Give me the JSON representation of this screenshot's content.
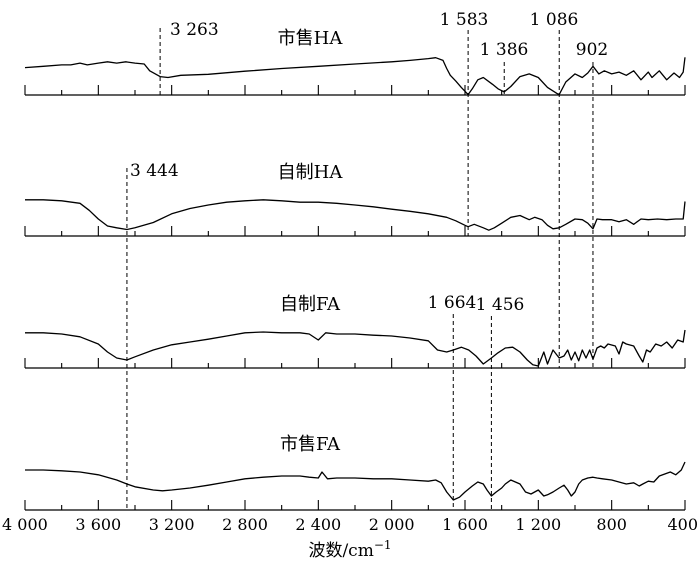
{
  "chart_data": {
    "type": "line",
    "xlabel": "波数/cm",
    "xlabel_sup": "−1",
    "xlim": [
      4000,
      400
    ],
    "x_reversed": true,
    "x_ticks": [
      {
        "value": 4000,
        "label": "4 000"
      },
      {
        "value": 3600,
        "label": "3 600"
      },
      {
        "value": 3200,
        "label": "3 200"
      },
      {
        "value": 2800,
        "label": "2 800"
      },
      {
        "value": 2400,
        "label": "2 400"
      },
      {
        "value": 2000,
        "label": "2 000"
      },
      {
        "value": 1600,
        "label": "1 600"
      },
      {
        "value": 1200,
        "label": "1 200"
      },
      {
        "value": 800,
        "label": "800"
      },
      {
        "value": 400,
        "label": "400"
      }
    ],
    "series": [
      {
        "name": "市售HA",
        "points": [
          [
            4000,
            0.28
          ],
          [
            3900,
            0.25
          ],
          [
            3800,
            0.22
          ],
          [
            3750,
            0.22
          ],
          [
            3700,
            0.18
          ],
          [
            3660,
            0.22
          ],
          [
            3600,
            0.18
          ],
          [
            3550,
            0.15
          ],
          [
            3500,
            0.18
          ],
          [
            3450,
            0.15
          ],
          [
            3400,
            0.18
          ],
          [
            3350,
            0.2
          ],
          [
            3320,
            0.35
          ],
          [
            3263,
            0.48
          ],
          [
            3220,
            0.5
          ],
          [
            3150,
            0.45
          ],
          [
            3000,
            0.43
          ],
          [
            2800,
            0.36
          ],
          [
            2600,
            0.3
          ],
          [
            2400,
            0.25
          ],
          [
            2200,
            0.2
          ],
          [
            2000,
            0.15
          ],
          [
            1900,
            0.12
          ],
          [
            1800,
            0.08
          ],
          [
            1760,
            0.06
          ],
          [
            1720,
            0.12
          ],
          [
            1700,
            0.3
          ],
          [
            1680,
            0.45
          ],
          [
            1650,
            0.58
          ],
          [
            1620,
            0.72
          ],
          [
            1583,
            0.88
          ],
          [
            1560,
            0.75
          ],
          [
            1530,
            0.55
          ],
          [
            1500,
            0.5
          ],
          [
            1450,
            0.65
          ],
          [
            1420,
            0.75
          ],
          [
            1386,
            0.82
          ],
          [
            1350,
            0.7
          ],
          [
            1300,
            0.48
          ],
          [
            1250,
            0.42
          ],
          [
            1200,
            0.5
          ],
          [
            1150,
            0.72
          ],
          [
            1100,
            0.85
          ],
          [
            1086,
            0.88
          ],
          [
            1050,
            0.6
          ],
          [
            1000,
            0.42
          ],
          [
            960,
            0.5
          ],
          [
            930,
            0.4
          ],
          [
            902,
            0.25
          ],
          [
            870,
            0.42
          ],
          [
            840,
            0.35
          ],
          [
            800,
            0.42
          ],
          [
            760,
            0.38
          ],
          [
            720,
            0.45
          ],
          [
            680,
            0.35
          ],
          [
            640,
            0.55
          ],
          [
            600,
            0.38
          ],
          [
            580,
            0.5
          ],
          [
            540,
            0.35
          ],
          [
            500,
            0.55
          ],
          [
            460,
            0.4
          ],
          [
            430,
            0.5
          ],
          [
            410,
            0.38
          ],
          [
            400,
            0.05
          ]
        ]
      },
      {
        "name": "自制HA",
        "points": [
          [
            4000,
            0.05
          ],
          [
            3900,
            0.05
          ],
          [
            3800,
            0.08
          ],
          [
            3700,
            0.15
          ],
          [
            3650,
            0.35
          ],
          [
            3600,
            0.6
          ],
          [
            3550,
            0.8
          ],
          [
            3500,
            0.85
          ],
          [
            3444,
            0.9
          ],
          [
            3400,
            0.85
          ],
          [
            3300,
            0.7
          ],
          [
            3200,
            0.45
          ],
          [
            3100,
            0.3
          ],
          [
            3000,
            0.2
          ],
          [
            2900,
            0.12
          ],
          [
            2800,
            0.08
          ],
          [
            2700,
            0.05
          ],
          [
            2600,
            0.08
          ],
          [
            2500,
            0.12
          ],
          [
            2400,
            0.12
          ],
          [
            2300,
            0.15
          ],
          [
            2200,
            0.2
          ],
          [
            2100,
            0.25
          ],
          [
            2000,
            0.32
          ],
          [
            1900,
            0.38
          ],
          [
            1800,
            0.45
          ],
          [
            1700,
            0.55
          ],
          [
            1650,
            0.65
          ],
          [
            1600,
            0.78
          ],
          [
            1583,
            0.82
          ],
          [
            1550,
            0.75
          ],
          [
            1500,
            0.85
          ],
          [
            1470,
            0.92
          ],
          [
            1440,
            0.85
          ],
          [
            1400,
            0.72
          ],
          [
            1350,
            0.55
          ],
          [
            1300,
            0.5
          ],
          [
            1250,
            0.62
          ],
          [
            1220,
            0.55
          ],
          [
            1180,
            0.62
          ],
          [
            1150,
            0.78
          ],
          [
            1120,
            0.88
          ],
          [
            1086,
            0.85
          ],
          [
            1050,
            0.75
          ],
          [
            1000,
            0.6
          ],
          [
            960,
            0.62
          ],
          [
            930,
            0.72
          ],
          [
            902,
            0.88
          ],
          [
            880,
            0.6
          ],
          [
            850,
            0.62
          ],
          [
            800,
            0.62
          ],
          [
            760,
            0.68
          ],
          [
            720,
            0.62
          ],
          [
            680,
            0.75
          ],
          [
            640,
            0.6
          ],
          [
            600,
            0.62
          ],
          [
            550,
            0.6
          ],
          [
            500,
            0.62
          ],
          [
            450,
            0.6
          ],
          [
            410,
            0.6
          ],
          [
            400,
            0.1
          ]
        ]
      },
      {
        "name": "自制FA",
        "points": [
          [
            4000,
            0.12
          ],
          [
            3900,
            0.12
          ],
          [
            3800,
            0.15
          ],
          [
            3700,
            0.22
          ],
          [
            3600,
            0.4
          ],
          [
            3550,
            0.6
          ],
          [
            3500,
            0.75
          ],
          [
            3444,
            0.8
          ],
          [
            3400,
            0.72
          ],
          [
            3300,
            0.55
          ],
          [
            3200,
            0.42
          ],
          [
            3100,
            0.35
          ],
          [
            3000,
            0.28
          ],
          [
            2900,
            0.2
          ],
          [
            2800,
            0.12
          ],
          [
            2700,
            0.1
          ],
          [
            2600,
            0.12
          ],
          [
            2500,
            0.12
          ],
          [
            2450,
            0.15
          ],
          [
            2400,
            0.3
          ],
          [
            2360,
            0.12
          ],
          [
            2300,
            0.15
          ],
          [
            2200,
            0.15
          ],
          [
            2100,
            0.18
          ],
          [
            2000,
            0.2
          ],
          [
            1900,
            0.25
          ],
          [
            1800,
            0.32
          ],
          [
            1750,
            0.55
          ],
          [
            1700,
            0.6
          ],
          [
            1664,
            0.55
          ],
          [
            1620,
            0.48
          ],
          [
            1580,
            0.55
          ],
          [
            1540,
            0.7
          ],
          [
            1500,
            0.9
          ],
          [
            1456,
            0.75
          ],
          [
            1420,
            0.62
          ],
          [
            1380,
            0.5
          ],
          [
            1340,
            0.48
          ],
          [
            1300,
            0.6
          ],
          [
            1260,
            0.8
          ],
          [
            1230,
            0.92
          ],
          [
            1200,
            0.95
          ],
          [
            1170,
            0.6
          ],
          [
            1150,
            0.9
          ],
          [
            1120,
            0.55
          ],
          [
            1086,
            0.75
          ],
          [
            1060,
            0.7
          ],
          [
            1040,
            0.55
          ],
          [
            1020,
            0.8
          ],
          [
            1000,
            0.6
          ],
          [
            980,
            0.82
          ],
          [
            960,
            0.55
          ],
          [
            940,
            0.75
          ],
          [
            920,
            0.55
          ],
          [
            902,
            0.78
          ],
          [
            880,
            0.5
          ],
          [
            860,
            0.45
          ],
          [
            840,
            0.5
          ],
          [
            820,
            0.4
          ],
          [
            780,
            0.45
          ],
          [
            760,
            0.65
          ],
          [
            740,
            0.35
          ],
          [
            720,
            0.4
          ],
          [
            680,
            0.45
          ],
          [
            650,
            0.7
          ],
          [
            630,
            0.85
          ],
          [
            610,
            0.55
          ],
          [
            590,
            0.6
          ],
          [
            560,
            0.4
          ],
          [
            530,
            0.45
          ],
          [
            500,
            0.35
          ],
          [
            470,
            0.5
          ],
          [
            440,
            0.3
          ],
          [
            410,
            0.35
          ],
          [
            400,
            0.05
          ]
        ]
      },
      {
        "name": "市售FA",
        "points": [
          [
            4000,
            0.0
          ],
          [
            3900,
            0.0
          ],
          [
            3800,
            0.02
          ],
          [
            3700,
            0.05
          ],
          [
            3600,
            0.12
          ],
          [
            3500,
            0.25
          ],
          [
            3444,
            0.35
          ],
          [
            3400,
            0.42
          ],
          [
            3300,
            0.5
          ],
          [
            3250,
            0.52
          ],
          [
            3200,
            0.5
          ],
          [
            3100,
            0.45
          ],
          [
            3000,
            0.38
          ],
          [
            2900,
            0.3
          ],
          [
            2800,
            0.22
          ],
          [
            2700,
            0.18
          ],
          [
            2600,
            0.15
          ],
          [
            2500,
            0.15
          ],
          [
            2450,
            0.18
          ],
          [
            2400,
            0.2
          ],
          [
            2380,
            0.05
          ],
          [
            2350,
            0.22
          ],
          [
            2300,
            0.2
          ],
          [
            2200,
            0.2
          ],
          [
            2100,
            0.22
          ],
          [
            2000,
            0.22
          ],
          [
            1900,
            0.25
          ],
          [
            1800,
            0.28
          ],
          [
            1760,
            0.25
          ],
          [
            1730,
            0.32
          ],
          [
            1700,
            0.55
          ],
          [
            1664,
            0.75
          ],
          [
            1630,
            0.68
          ],
          [
            1600,
            0.55
          ],
          [
            1560,
            0.4
          ],
          [
            1530,
            0.3
          ],
          [
            1500,
            0.35
          ],
          [
            1480,
            0.5
          ],
          [
            1456,
            0.65
          ],
          [
            1430,
            0.55
          ],
          [
            1400,
            0.45
          ],
          [
            1380,
            0.35
          ],
          [
            1350,
            0.25
          ],
          [
            1300,
            0.35
          ],
          [
            1270,
            0.55
          ],
          [
            1240,
            0.6
          ],
          [
            1200,
            0.5
          ],
          [
            1170,
            0.65
          ],
          [
            1150,
            0.62
          ],
          [
            1120,
            0.55
          ],
          [
            1086,
            0.45
          ],
          [
            1060,
            0.38
          ],
          [
            1040,
            0.5
          ],
          [
            1020,
            0.65
          ],
          [
            1000,
            0.55
          ],
          [
            980,
            0.35
          ],
          [
            960,
            0.25
          ],
          [
            930,
            0.2
          ],
          [
            902,
            0.18
          ],
          [
            880,
            0.2
          ],
          [
            850,
            0.22
          ],
          [
            800,
            0.25
          ],
          [
            760,
            0.3
          ],
          [
            720,
            0.35
          ],
          [
            680,
            0.32
          ],
          [
            650,
            0.4
          ],
          [
            630,
            0.35
          ],
          [
            600,
            0.28
          ],
          [
            570,
            0.3
          ],
          [
            540,
            0.15
          ],
          [
            510,
            0.1
          ],
          [
            480,
            0.05
          ],
          [
            450,
            0.12
          ],
          [
            420,
            0.0
          ],
          [
            400,
            -0.2
          ]
        ]
      }
    ],
    "annotations": [
      {
        "series": 0,
        "label": "3 263",
        "x": 3263
      },
      {
        "series": 0,
        "label": "1 583",
        "x": 1583
      },
      {
        "series": 0,
        "label": "1 386",
        "x": 1386
      },
      {
        "series": 0,
        "label": "1 086",
        "x": 1086
      },
      {
        "series": 0,
        "label": "902",
        "x": 902
      },
      {
        "series": 1,
        "label": "3 444",
        "x": 3444
      },
      {
        "series": 2,
        "label": "1 664",
        "x": 1664
      },
      {
        "series": 2,
        "label": "1 456",
        "x": 1456
      }
    ]
  }
}
